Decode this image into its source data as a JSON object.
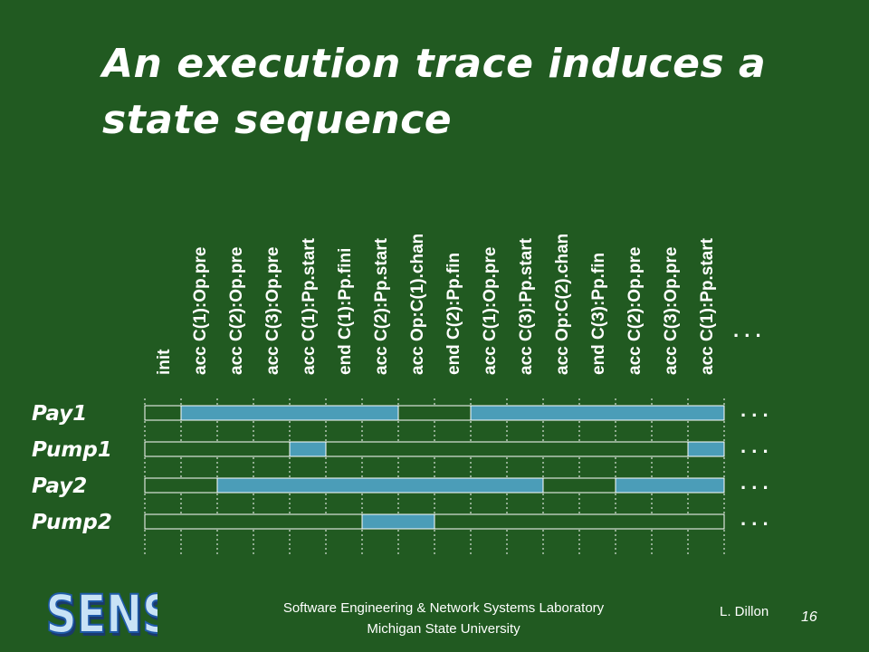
{
  "slide": {
    "title_line1": "An execution trace induces a",
    "title_line2": "state sequence",
    "footer_line1": "Software Engineering & Network Systems Laboratory",
    "footer_line2": "Michigan State University",
    "author": "L. Dillon",
    "page_number": "16",
    "logo_text": "SENS"
  },
  "trace": {
    "events": [
      "init",
      "acc C(1):Op.pre",
      "acc C(2):Op.pre",
      "acc C(3):Op.pre",
      "acc C(1):Pp.start",
      "end C(1):Pp.fini",
      "acc C(2):Pp.start",
      "acc Op:C(1).chan",
      "end C(2):Pp.fin",
      "acc C(1):Op.pre",
      "acc C(3):Pp.start",
      "acc Op:C(2).chan",
      "end C(3):Pp.fin",
      "acc C(2):Op.pre",
      "acc C(3):Op.pre",
      "acc C(1):Pp.start"
    ],
    "ellipsis": ". . .",
    "rows": [
      {
        "label": "Pay1",
        "active": [
          [
            1,
            7
          ],
          [
            9,
            16
          ]
        ]
      },
      {
        "label": "Pump1",
        "active": [
          [
            4,
            5
          ],
          [
            15,
            16
          ]
        ]
      },
      {
        "label": "Pay2",
        "active": [
          [
            2,
            11
          ],
          [
            13,
            16
          ]
        ]
      },
      {
        "label": "Pump2",
        "active": [
          [
            6,
            8
          ]
        ]
      }
    ],
    "colors": {
      "active": "#4b9db8",
      "inactive": "#215a21",
      "border": "#ffffff"
    }
  }
}
